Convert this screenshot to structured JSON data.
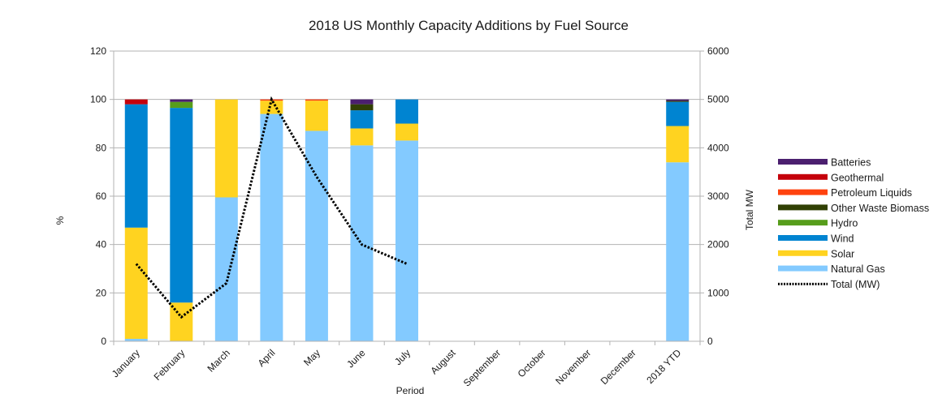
{
  "chart_data": {
    "type": "bar",
    "subtype": "stacked-bar-with-line",
    "title": "2018 US Monthly Capacity Additions by Fuel Source",
    "xlabel": "Period",
    "ylabel": "%",
    "y2label": "Total MW",
    "ylim": [
      0,
      120
    ],
    "y2lim": [
      0,
      6000
    ],
    "yticks": [
      0,
      20,
      40,
      60,
      80,
      100,
      120
    ],
    "y2ticks": [
      0,
      1000,
      2000,
      3000,
      4000,
      5000,
      6000
    ],
    "grid": true,
    "legend_position": "right",
    "categories": [
      "January",
      "February",
      "March",
      "April",
      "May",
      "June",
      "July",
      "August",
      "September",
      "October",
      "November",
      "December",
      "2018 YTD"
    ],
    "series": [
      {
        "name": "Natural Gas",
        "color": "#83caff",
        "values": [
          1,
          0,
          59.5,
          94,
          87,
          81,
          83,
          null,
          null,
          null,
          null,
          null,
          74
        ]
      },
      {
        "name": "Solar",
        "color": "#ffd320",
        "values": [
          46,
          16,
          40.5,
          5.5,
          12.5,
          7,
          7,
          null,
          null,
          null,
          null,
          null,
          15
        ]
      },
      {
        "name": "Wind",
        "color": "#0084d1",
        "values": [
          51,
          80.5,
          0,
          0,
          0,
          7.5,
          10,
          null,
          null,
          null,
          null,
          null,
          10
        ]
      },
      {
        "name": "Hydro",
        "color": "#579d1c",
        "values": [
          0,
          2.5,
          0,
          0,
          0,
          0,
          0,
          null,
          null,
          null,
          null,
          null,
          0
        ]
      },
      {
        "name": "Other Waste Biomass",
        "color": "#314004",
        "values": [
          0,
          0,
          0,
          0,
          0,
          2.5,
          0,
          null,
          null,
          null,
          null,
          null,
          0.4
        ]
      },
      {
        "name": "Petroleum Liquids",
        "color": "#ff420e",
        "values": [
          0,
          0,
          0,
          0.5,
          0.5,
          0,
          0,
          null,
          null,
          null,
          null,
          null,
          0
        ]
      },
      {
        "name": "Geothermal",
        "color": "#c5000b",
        "values": [
          2,
          0,
          0,
          0,
          0,
          0,
          0,
          null,
          null,
          null,
          null,
          null,
          0
        ]
      },
      {
        "name": "Batteries",
        "color": "#4b1f6f",
        "values": [
          0,
          1,
          0,
          0,
          0,
          2,
          0,
          null,
          null,
          null,
          null,
          null,
          0.6
        ]
      }
    ],
    "line_series": {
      "name": "Total (MW)",
      "color": "#000000",
      "axis": "secondary",
      "values": [
        1600,
        500,
        1200,
        5000,
        3400,
        2000,
        1600,
        null,
        null,
        null,
        null,
        null,
        null
      ]
    },
    "legend_order": [
      "Batteries",
      "Geothermal",
      "Petroleum Liquids",
      "Other Waste Biomass",
      "Hydro",
      "Wind",
      "Solar",
      "Natural Gas",
      "Total (MW)"
    ]
  }
}
